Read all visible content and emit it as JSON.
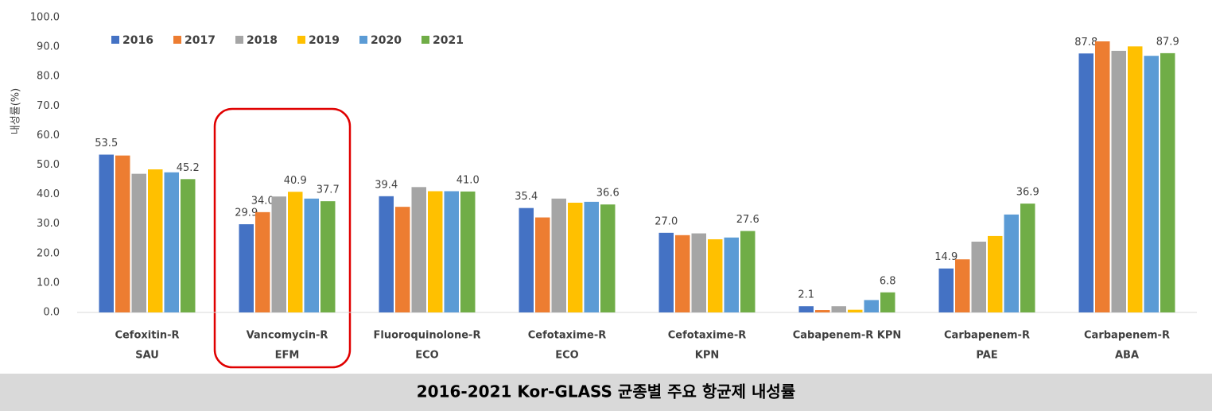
{
  "chart_data": {
    "type": "bar",
    "title": "2016-2021 Kor-GLASS 균종별 주요 항균제 내성률",
    "y_label": "내성률(%)",
    "categories": [
      [
        "Cefoxitin-R",
        "SAU"
      ],
      [
        "Vancomycin-R",
        "EFM"
      ],
      [
        "Fluoroquinolone-R",
        "ECO"
      ],
      [
        "Cefotaxime-R",
        "ECO"
      ],
      [
        "Cefotaxime-R",
        "KPN"
      ],
      [
        "Cabapenem-R KPN"
      ],
      [
        "Carbapenem-R",
        "PAE"
      ],
      [
        "Carbapenem-R",
        "ABA"
      ]
    ],
    "series": [
      {
        "name": "2016",
        "color": "#4472c4",
        "values": [
          53.5,
          29.9,
          39.4,
          35.4,
          27.0,
          2.1,
          14.9,
          87.8
        ],
        "value_labels": [
          "53.5",
          "29.9",
          "39.4",
          "35.4",
          "27.0",
          "2.1",
          "14.9",
          "87.8"
        ]
      },
      {
        "name": "2017",
        "color": "#ed7d31",
        "values": [
          53.2,
          34.0,
          35.8,
          32.2,
          26.2,
          0.8,
          18.0,
          91.9
        ],
        "value_labels": [
          null,
          "34.0",
          null,
          null,
          null,
          null,
          null,
          null
        ]
      },
      {
        "name": "2018",
        "color": "#a5a5a5",
        "values": [
          47.0,
          39.3,
          42.5,
          38.6,
          26.8,
          2.1,
          24.0,
          88.7
        ]
      },
      {
        "name": "2019",
        "color": "#ffc000",
        "values": [
          48.5,
          40.9,
          41.1,
          37.2,
          24.8,
          0.9,
          25.9,
          90.2
        ],
        "value_labels": [
          null,
          "40.9",
          null,
          null,
          null,
          null,
          null,
          null
        ]
      },
      {
        "name": "2020",
        "color": "#5b9bd5",
        "values": [
          47.5,
          38.6,
          41.1,
          37.5,
          25.4,
          4.2,
          33.2,
          87.0
        ]
      },
      {
        "name": "2021",
        "color": "#70ad47",
        "values": [
          45.2,
          37.7,
          41.0,
          36.6,
          27.6,
          6.8,
          36.9,
          87.9
        ],
        "value_labels": [
          "45.2",
          "37.7",
          "41.0",
          "36.6",
          "27.6",
          "6.8",
          "36.9",
          "87.9"
        ]
      }
    ],
    "ylim": [
      0,
      100
    ],
    "yticks": [
      {
        "value": 0,
        "label": "0.0"
      },
      {
        "value": 10,
        "label": "10.0"
      },
      {
        "value": 20,
        "label": "20.0"
      },
      {
        "value": 30,
        "label": "30.0"
      },
      {
        "value": 40,
        "label": "40.0"
      },
      {
        "value": 50,
        "label": "50.0"
      },
      {
        "value": 60,
        "label": "60.0"
      },
      {
        "value": 70,
        "label": "70.0"
      },
      {
        "value": 80,
        "label": "80.0"
      },
      {
        "value": 90,
        "label": "90.0"
      },
      {
        "value": 100,
        "label": "100.0"
      }
    ],
    "grid": false,
    "legend": "top-left"
  }
}
